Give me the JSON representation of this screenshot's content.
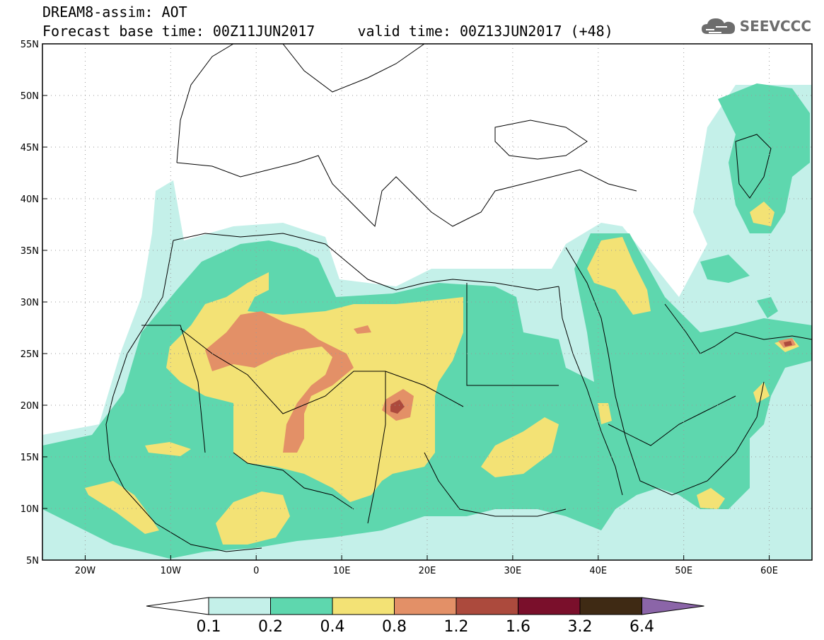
{
  "header": {
    "line1": "DREAM8-assim: AOT",
    "line2": "Forecast base time: 00Z11JUN2017     valid time: 00Z13JUN2017 (+48)"
  },
  "logo": {
    "text": "SEEVCCC",
    "icon": "cloud-icon"
  },
  "axes": {
    "lat_labels": [
      "55N",
      "50N",
      "45N",
      "40N",
      "35N",
      "30N",
      "25N",
      "20N",
      "15N",
      "10N",
      "5N"
    ],
    "lat_values": [
      55,
      50,
      45,
      40,
      35,
      30,
      25,
      20,
      15,
      10,
      5
    ],
    "lon_labels": [
      "20W",
      "10W",
      "0",
      "10E",
      "20E",
      "30E",
      "40E",
      "50E",
      "60E"
    ],
    "lon_values": [
      -20,
      -10,
      0,
      10,
      20,
      30,
      40,
      50,
      60
    ],
    "lon_range": [
      -25,
      65
    ],
    "lat_range": [
      5,
      55
    ],
    "grid": "dotted"
  },
  "colorbar": {
    "labels": [
      "0.1",
      "0.2",
      "0.4",
      "0.8",
      "1.2",
      "1.6",
      "3.2",
      "6.4"
    ],
    "colors": [
      "#c4f0e9",
      "#5ed7ae",
      "#f3e275",
      "#e39067",
      "#ac4a3d",
      "#7a0f2b",
      "#3f2a14",
      "#8b65a8"
    ],
    "low_color": "#ffffff"
  },
  "layers": {
    "c01": "#c4f0e9",
    "c02": "#5ed7ae",
    "c04": "#f3e275",
    "c08": "#e39067",
    "c12": "#ac4a3d",
    "c16": "#7a0f2b",
    "border_color": "#000000",
    "grid_color": "#9a9a9a"
  }
}
